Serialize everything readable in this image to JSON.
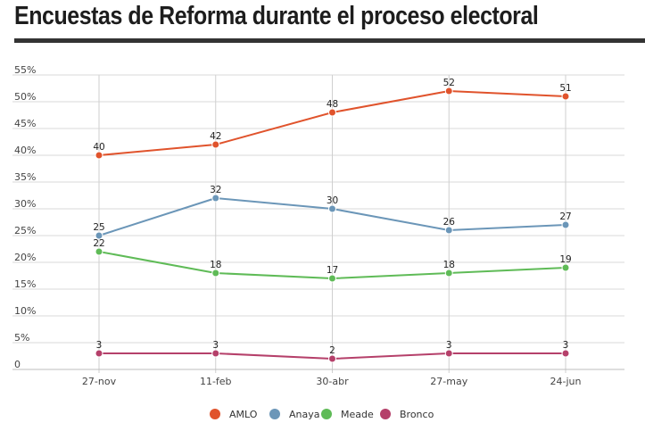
{
  "header": {
    "title": "Encuestas de Reforma durante el proceso electoral"
  },
  "chart_data": {
    "type": "line",
    "title": "Encuestas de Reforma durante el proceso electoral",
    "categories": [
      "27-nov",
      "11-feb",
      "30-abr",
      "27-may",
      "24-jun"
    ],
    "y_ticks": [
      "0",
      "5%",
      "10%",
      "15%",
      "20%",
      "25%",
      "30%",
      "35%",
      "40%",
      "45%",
      "50%",
      "55%"
    ],
    "ylim": [
      0,
      55
    ],
    "grid": true,
    "legend_position": "bottom",
    "series": [
      {
        "name": "AMLO",
        "color": "#e0532c",
        "values": [
          40,
          42,
          48,
          52,
          51
        ]
      },
      {
        "name": "Anaya",
        "color": "#6b96b8",
        "values": [
          25,
          32,
          30,
          26,
          27
        ]
      },
      {
        "name": "Meade",
        "color": "#5fbb57",
        "values": [
          22,
          18,
          17,
          18,
          19
        ]
      },
      {
        "name": "Bronco",
        "color": "#b5406a",
        "values": [
          3,
          3,
          2,
          3,
          3
        ]
      }
    ]
  }
}
